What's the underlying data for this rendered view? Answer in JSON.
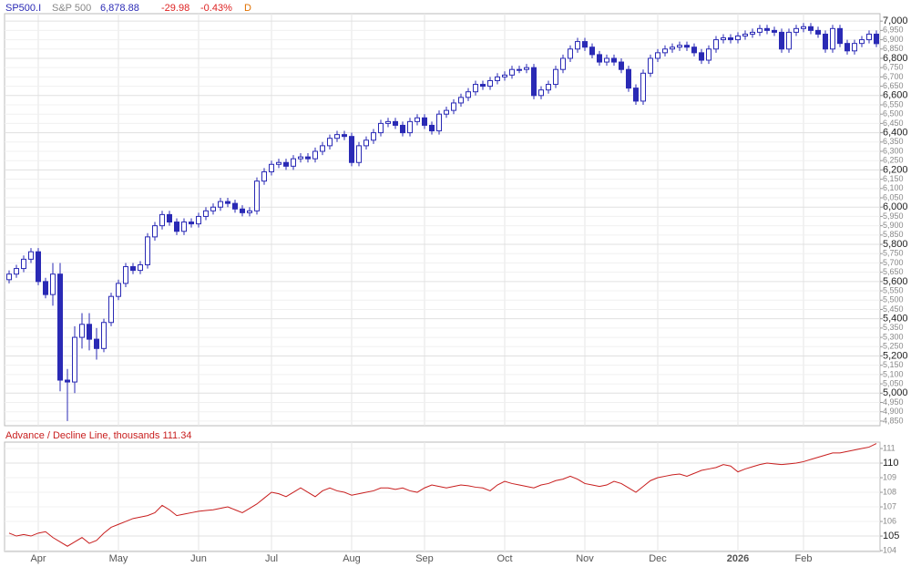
{
  "chart_data": [
    {
      "type": "candlestick",
      "header": {
        "symbol": "SP500.I",
        "name": "S&P 500",
        "last": "6,878.88",
        "change": "-29.98",
        "change_pct": "-0.43%",
        "period": "D"
      },
      "color": "#2a2ab5",
      "categories": [
        null,
        null,
        null,
        null,
        "Apr",
        null,
        null,
        null,
        null,
        null,
        null,
        null,
        null,
        null,
        null,
        "May",
        null,
        null,
        null,
        null,
        null,
        null,
        null,
        null,
        null,
        null,
        "Jun",
        null,
        null,
        null,
        null,
        null,
        null,
        null,
        null,
        null,
        "Jul",
        null,
        null,
        null,
        null,
        null,
        null,
        null,
        null,
        null,
        null,
        "Aug",
        null,
        null,
        null,
        null,
        null,
        null,
        null,
        null,
        null,
        "Sep",
        null,
        null,
        null,
        null,
        null,
        null,
        null,
        null,
        null,
        null,
        "Oct",
        null,
        null,
        null,
        null,
        null,
        null,
        null,
        null,
        null,
        null,
        "Nov",
        null,
        null,
        null,
        null,
        null,
        null,
        null,
        null,
        null,
        "Dec",
        null,
        null,
        null,
        null,
        null,
        null,
        null,
        null,
        null,
        null,
        "2026",
        null,
        null,
        null,
        null,
        null,
        null,
        null,
        null,
        "Feb",
        null,
        null,
        null,
        null,
        null,
        null,
        null,
        null,
        null,
        null
      ],
      "open": [
        5610,
        5640,
        5670,
        5720,
        5760,
        5600,
        5530,
        5640,
        5070,
        5060,
        5300,
        5370,
        5290,
        5240,
        5380,
        5520,
        5590,
        5680,
        5660,
        5690,
        5840,
        5900,
        5960,
        5920,
        5870,
        5920,
        5910,
        5950,
        5980,
        6000,
        6030,
        6020,
        5990,
        5970,
        5980,
        6140,
        6190,
        6230,
        6240,
        6220,
        6260,
        6270,
        6260,
        6300,
        6330,
        6370,
        6390,
        6380,
        6240,
        6330,
        6360,
        6400,
        6450,
        6460,
        6440,
        6400,
        6460,
        6480,
        6440,
        6410,
        6500,
        6520,
        6560,
        6590,
        6620,
        6660,
        6650,
        6680,
        6700,
        6710,
        6740,
        6740,
        6750,
        6600,
        6630,
        6660,
        6740,
        6800,
        6850,
        6890,
        6860,
        6820,
        6780,
        6800,
        6780,
        6740,
        6640,
        6570,
        6720,
        6800,
        6830,
        6850,
        6860,
        6870,
        6860,
        6830,
        6790,
        6850,
        6900,
        6910,
        6900,
        6920,
        6930,
        6940,
        6960,
        6950,
        6940,
        6850,
        6940,
        6960,
        6970,
        6950,
        6930,
        6850,
        6960,
        6880,
        6840,
        6880,
        6900,
        6930
      ],
      "high": [
        5660,
        5690,
        5740,
        5780,
        5780,
        5620,
        5700,
        5700,
        5130,
        5360,
        5430,
        5430,
        5350,
        5400,
        5540,
        5610,
        5700,
        5700,
        5710,
        5860,
        5920,
        5980,
        5980,
        5940,
        5940,
        5940,
        5970,
        6000,
        6020,
        6050,
        6050,
        6040,
        6010,
        6000,
        6160,
        6210,
        6250,
        6260,
        6260,
        6280,
        6290,
        6290,
        6320,
        6350,
        6390,
        6410,
        6410,
        6400,
        6350,
        6380,
        6420,
        6470,
        6480,
        6480,
        6460,
        6480,
        6500,
        6500,
        6460,
        6520,
        6540,
        6580,
        6610,
        6640,
        6680,
        6680,
        6700,
        6720,
        6730,
        6760,
        6760,
        6770,
        6770,
        6650,
        6680,
        6760,
        6820,
        6870,
        6910,
        6910,
        6880,
        6840,
        6820,
        6820,
        6800,
        6760,
        6660,
        6740,
        6820,
        6850,
        6870,
        6880,
        6890,
        6890,
        6880,
        6850,
        6870,
        6920,
        6930,
        6930,
        6940,
        6950,
        6960,
        6980,
        6980,
        6970,
        6960,
        6960,
        6980,
        6990,
        6990,
        6970,
        6950,
        6980,
        6980,
        6900,
        6900,
        6920,
        6950,
        6950
      ],
      "low": [
        5590,
        5620,
        5650,
        5700,
        5580,
        5510,
        5470,
        5010,
        4850,
        5000,
        5240,
        5230,
        5180,
        5220,
        5360,
        5500,
        5570,
        5640,
        5640,
        5670,
        5820,
        5880,
        5900,
        5850,
        5850,
        5890,
        5890,
        5930,
        5960,
        5980,
        6000,
        5970,
        5950,
        5950,
        5960,
        6120,
        6170,
        6210,
        6200,
        6200,
        6240,
        6240,
        6240,
        6280,
        6310,
        6350,
        6360,
        6220,
        6220,
        6310,
        6340,
        6380,
        6430,
        6420,
        6380,
        6380,
        6440,
        6420,
        6390,
        6390,
        6480,
        6500,
        6540,
        6570,
        6600,
        6630,
        6630,
        6660,
        6680,
        6690,
        6720,
        6720,
        6580,
        6580,
        6610,
        6640,
        6720,
        6780,
        6830,
        6840,
        6800,
        6760,
        6760,
        6760,
        6720,
        6620,
        6550,
        6550,
        6700,
        6780,
        6810,
        6830,
        6840,
        6840,
        6810,
        6770,
        6770,
        6830,
        6880,
        6880,
        6880,
        6900,
        6910,
        6920,
        6930,
        6920,
        6830,
        6830,
        6920,
        6940,
        6930,
        6910,
        6830,
        6830,
        6860,
        6820,
        6820,
        6860,
        6880,
        6860
      ],
      "close": [
        5640,
        5670,
        5720,
        5760,
        5600,
        5530,
        5640,
        5070,
        5060,
        5300,
        5370,
        5290,
        5240,
        5380,
        5520,
        5590,
        5680,
        5660,
        5690,
        5840,
        5900,
        5960,
        5920,
        5870,
        5920,
        5910,
        5950,
        5980,
        6000,
        6030,
        6020,
        5990,
        5970,
        5980,
        6140,
        6190,
        6230,
        6240,
        6220,
        6260,
        6270,
        6260,
        6300,
        6330,
        6370,
        6390,
        6380,
        6240,
        6330,
        6360,
        6400,
        6450,
        6460,
        6440,
        6400,
        6460,
        6480,
        6440,
        6410,
        6500,
        6520,
        6560,
        6590,
        6620,
        6660,
        6650,
        6680,
        6700,
        6710,
        6740,
        6740,
        6750,
        6600,
        6630,
        6660,
        6740,
        6800,
        6850,
        6890,
        6860,
        6820,
        6780,
        6800,
        6780,
        6740,
        6640,
        6570,
        6720,
        6800,
        6830,
        6850,
        6860,
        6870,
        6860,
        6830,
        6790,
        6850,
        6900,
        6910,
        6900,
        6920,
        6930,
        6940,
        6960,
        6950,
        6940,
        6850,
        6940,
        6960,
        6970,
        6950,
        6930,
        6850,
        6960,
        6880,
        6840,
        6880,
        6900,
        6930,
        6878.88
      ],
      "ylim": [
        4825,
        7040
      ],
      "yticks": [
        {
          "value": 4850,
          "label": "4,850"
        },
        {
          "value": 4900,
          "label": "4,900"
        },
        {
          "value": 4950,
          "label": "4,950"
        },
        {
          "value": 5000,
          "label": "5,000"
        },
        {
          "value": 5050,
          "label": "5,050"
        },
        {
          "value": 5100,
          "label": "5,100"
        },
        {
          "value": 5150,
          "label": "5,150"
        },
        {
          "value": 5200,
          "label": "5,200"
        },
        {
          "value": 5250,
          "label": "5,250"
        },
        {
          "value": 5300,
          "label": "5,300"
        },
        {
          "value": 5350,
          "label": "5,350"
        },
        {
          "value": 5400,
          "label": "5,400"
        },
        {
          "value": 5450,
          "label": "5,450"
        },
        {
          "value": 5500,
          "label": "5,500"
        },
        {
          "value": 5550,
          "label": "5,550"
        },
        {
          "value": 5600,
          "label": "5,600"
        },
        {
          "value": 5650,
          "label": "5,650"
        },
        {
          "value": 5700,
          "label": "5,700"
        },
        {
          "value": 5750,
          "label": "5,750"
        },
        {
          "value": 5800,
          "label": "5,800"
        },
        {
          "value": 5850,
          "label": "5,850"
        },
        {
          "value": 5900,
          "label": "5,900"
        },
        {
          "value": 5950,
          "label": "5,950"
        },
        {
          "value": 6000,
          "label": "6,000"
        },
        {
          "value": 6050,
          "label": "6,050"
        },
        {
          "value": 6100,
          "label": "6,100"
        },
        {
          "value": 6150,
          "label": "6,150"
        },
        {
          "value": 6200,
          "label": "6,200"
        },
        {
          "value": 6250,
          "label": "6,250"
        },
        {
          "value": 6300,
          "label": "6,300"
        },
        {
          "value": 6350,
          "label": "6,350"
        },
        {
          "value": 6400,
          "label": "6,400"
        },
        {
          "value": 6450,
          "label": "6,450"
        },
        {
          "value": 6500,
          "label": "6,500"
        },
        {
          "value": 6550,
          "label": "6,550"
        },
        {
          "value": 6600,
          "label": "6,600"
        },
        {
          "value": 6650,
          "label": "6,650"
        },
        {
          "value": 6700,
          "label": "6,700"
        },
        {
          "value": 6750,
          "label": "6,750"
        },
        {
          "value": 6800,
          "label": "6,800"
        },
        {
          "value": 6850,
          "label": "6,850"
        },
        {
          "value": 6900,
          "label": "6,900"
        },
        {
          "value": 6950,
          "label": "6,950"
        },
        {
          "value": 7000,
          "label": "7,000"
        }
      ],
      "grid": true
    },
    {
      "type": "line",
      "title": "Advance / Decline Line, thousands 111.34",
      "color": "#c81e1e",
      "values": [
        105.2,
        105.0,
        105.1,
        105.0,
        105.2,
        105.3,
        104.9,
        104.6,
        104.3,
        104.6,
        104.9,
        104.5,
        104.7,
        105.2,
        105.6,
        105.8,
        106.0,
        106.2,
        106.3,
        106.4,
        106.6,
        107.1,
        106.8,
        106.4,
        106.5,
        106.6,
        106.7,
        106.75,
        106.8,
        106.9,
        107.0,
        106.8,
        106.6,
        106.9,
        107.2,
        107.6,
        108.0,
        107.9,
        107.7,
        108.0,
        108.3,
        108.0,
        107.7,
        108.1,
        108.3,
        108.1,
        108.0,
        107.8,
        107.9,
        108.0,
        108.1,
        108.3,
        108.3,
        108.2,
        108.3,
        108.1,
        108.0,
        108.3,
        108.5,
        108.4,
        108.3,
        108.4,
        108.5,
        108.45,
        108.35,
        108.3,
        108.1,
        108.5,
        108.75,
        108.6,
        108.5,
        108.4,
        108.3,
        108.5,
        108.6,
        108.8,
        108.9,
        109.1,
        108.9,
        108.6,
        108.5,
        108.4,
        108.5,
        108.75,
        108.6,
        108.3,
        108.0,
        108.4,
        108.8,
        109.0,
        109.1,
        109.2,
        109.25,
        109.1,
        109.3,
        109.5,
        109.6,
        109.7,
        109.9,
        109.8,
        109.4,
        109.6,
        109.75,
        109.9,
        110.0,
        109.95,
        109.9,
        109.95,
        110.0,
        110.1,
        110.25,
        110.4,
        110.55,
        110.7,
        110.7,
        110.8,
        110.9,
        111.0,
        111.1,
        111.34
      ],
      "ylim": [
        103.94,
        111.44
      ],
      "yticks": [
        104,
        105,
        106,
        107,
        108,
        109,
        110,
        111
      ],
      "grid": true
    }
  ]
}
